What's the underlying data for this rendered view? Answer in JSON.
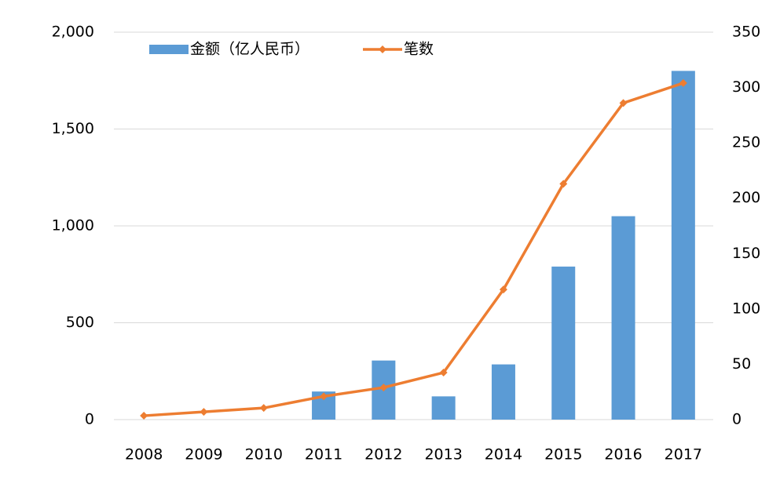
{
  "chart_data": {
    "type": "bar-line",
    "categories": [
      "2008",
      "2009",
      "2010",
      "2011",
      "2012",
      "2013",
      "2014",
      "2015",
      "2016",
      "2017"
    ],
    "series": [
      {
        "name": "金额（亿人民币）",
        "type": "bar",
        "color": "#5b9bd5",
        "axis": "y",
        "values": [
          0,
          0,
          0,
          145,
          305,
          120,
          285,
          790,
          1050,
          1800
        ]
      },
      {
        "name": "笔数",
        "type": "line",
        "color": "#ed7d31",
        "axis": "y2",
        "values": [
          3.5,
          7,
          10.5,
          21,
          29,
          42.5,
          117.5,
          213,
          286,
          304
        ]
      }
    ],
    "ylim": [
      0,
      2000
    ],
    "yticks": [
      0,
      500,
      {
        "value": 1000,
        "label": "1,000"
      },
      {
        "value": 1500,
        "label": "1,500"
      },
      {
        "value": 2000,
        "label": "2,000"
      }
    ],
    "y2lim": [
      0,
      350
    ],
    "y2ticks": [
      0,
      50,
      100,
      150,
      200,
      250,
      300,
      350
    ],
    "grid": true,
    "legend": "top"
  }
}
